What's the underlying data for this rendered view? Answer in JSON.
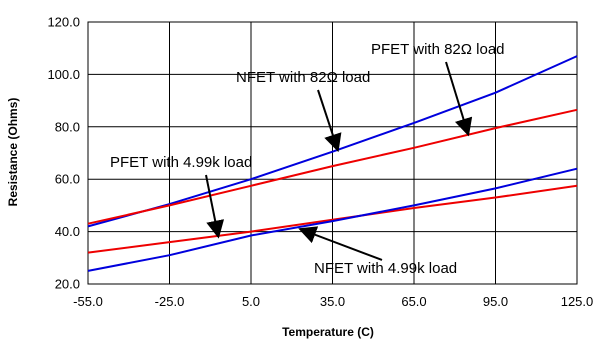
{
  "chart_data": {
    "type": "line",
    "title": "",
    "xlabel": "Temperature (C)",
    "ylabel": "Resistance (Ohms)",
    "xlim": [
      -55,
      125
    ],
    "ylim": [
      20,
      120
    ],
    "xticks": [
      "-55.0",
      "-25.0",
      "5.0",
      "35.0",
      "65.0",
      "95.0",
      "125.0"
    ],
    "yticks": [
      "20.0",
      "40.0",
      "60.0",
      "80.0",
      "100.0",
      "120.0"
    ],
    "grid": true,
    "legend": "none",
    "series": [
      {
        "color": "#0000dd",
        "x": [
          -55,
          -25,
          5,
          35,
          65,
          95,
          125
        ],
        "y": [
          42.0,
          50.5,
          60.0,
          70.5,
          81.5,
          93.0,
          107.0
        ]
      },
      {
        "color": "#ee0000",
        "x": [
          -55,
          -25,
          5,
          35,
          65,
          95,
          125
        ],
        "y": [
          43.0,
          50.0,
          57.5,
          65.0,
          72.0,
          79.5,
          86.5
        ]
      },
      {
        "color": "#ee0000",
        "x": [
          -55,
          -25,
          5,
          35,
          65,
          95,
          125
        ],
        "y": [
          32.0,
          36.0,
          40.0,
          44.5,
          49.0,
          53.0,
          57.5
        ]
      },
      {
        "color": "#0000dd",
        "x": [
          -55,
          -25,
          5,
          35,
          65,
          95,
          125
        ],
        "y": [
          25.0,
          31.0,
          38.5,
          44.0,
          50.0,
          56.5,
          64.0
        ]
      }
    ],
    "annotations": [
      {
        "text": "PFET with 82Ω load",
        "arrow_to": [
          85,
          77
        ]
      },
      {
        "text": "NFET with 82Ω load",
        "arrow_to": [
          37,
          71
        ]
      },
      {
        "text": "PFET with 4.99k load",
        "arrow_to": [
          -7,
          38
        ]
      },
      {
        "text": "NFET with 4.99k load",
        "arrow_to": [
          23,
          41
        ]
      }
    ]
  }
}
